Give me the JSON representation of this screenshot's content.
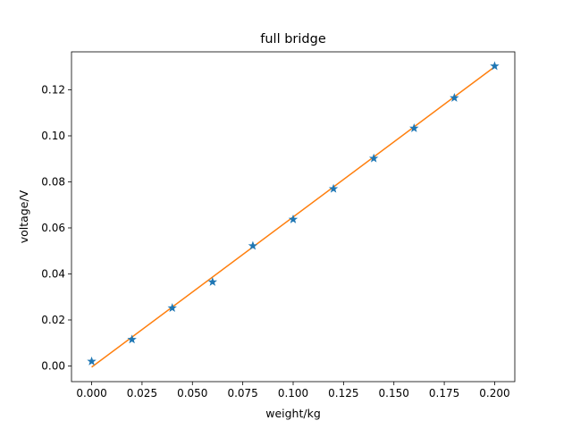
{
  "chart_data": {
    "type": "scatter",
    "title": "full bridge",
    "xlabel": "weight/kg",
    "ylabel": "voltage/V",
    "xlim": [
      -0.01,
      0.21
    ],
    "ylim": [
      -0.0068,
      0.1365
    ],
    "xticks": [
      "0.000",
      "0.025",
      "0.050",
      "0.075",
      "0.100",
      "0.125",
      "0.150",
      "0.175",
      "0.200"
    ],
    "yticks": [
      "0.00",
      "0.02",
      "0.04",
      "0.06",
      "0.08",
      "0.10",
      "0.12"
    ],
    "grid": false,
    "series": [
      {
        "kind": "scatter",
        "marker": "star",
        "color": "#1f77b4",
        "x": [
          0.0,
          0.02,
          0.04,
          0.06,
          0.08,
          0.1,
          0.12,
          0.14,
          0.16,
          0.18,
          0.2
        ],
        "y": [
          0.002,
          0.0115,
          0.0252,
          0.0365,
          0.0522,
          0.0637,
          0.077,
          0.0902,
          0.1033,
          0.1165,
          0.1303
        ]
      },
      {
        "kind": "line",
        "color": "#ff7f0e",
        "x": [
          0.0,
          0.2
        ],
        "y": [
          -0.0005,
          0.13
        ]
      }
    ]
  }
}
